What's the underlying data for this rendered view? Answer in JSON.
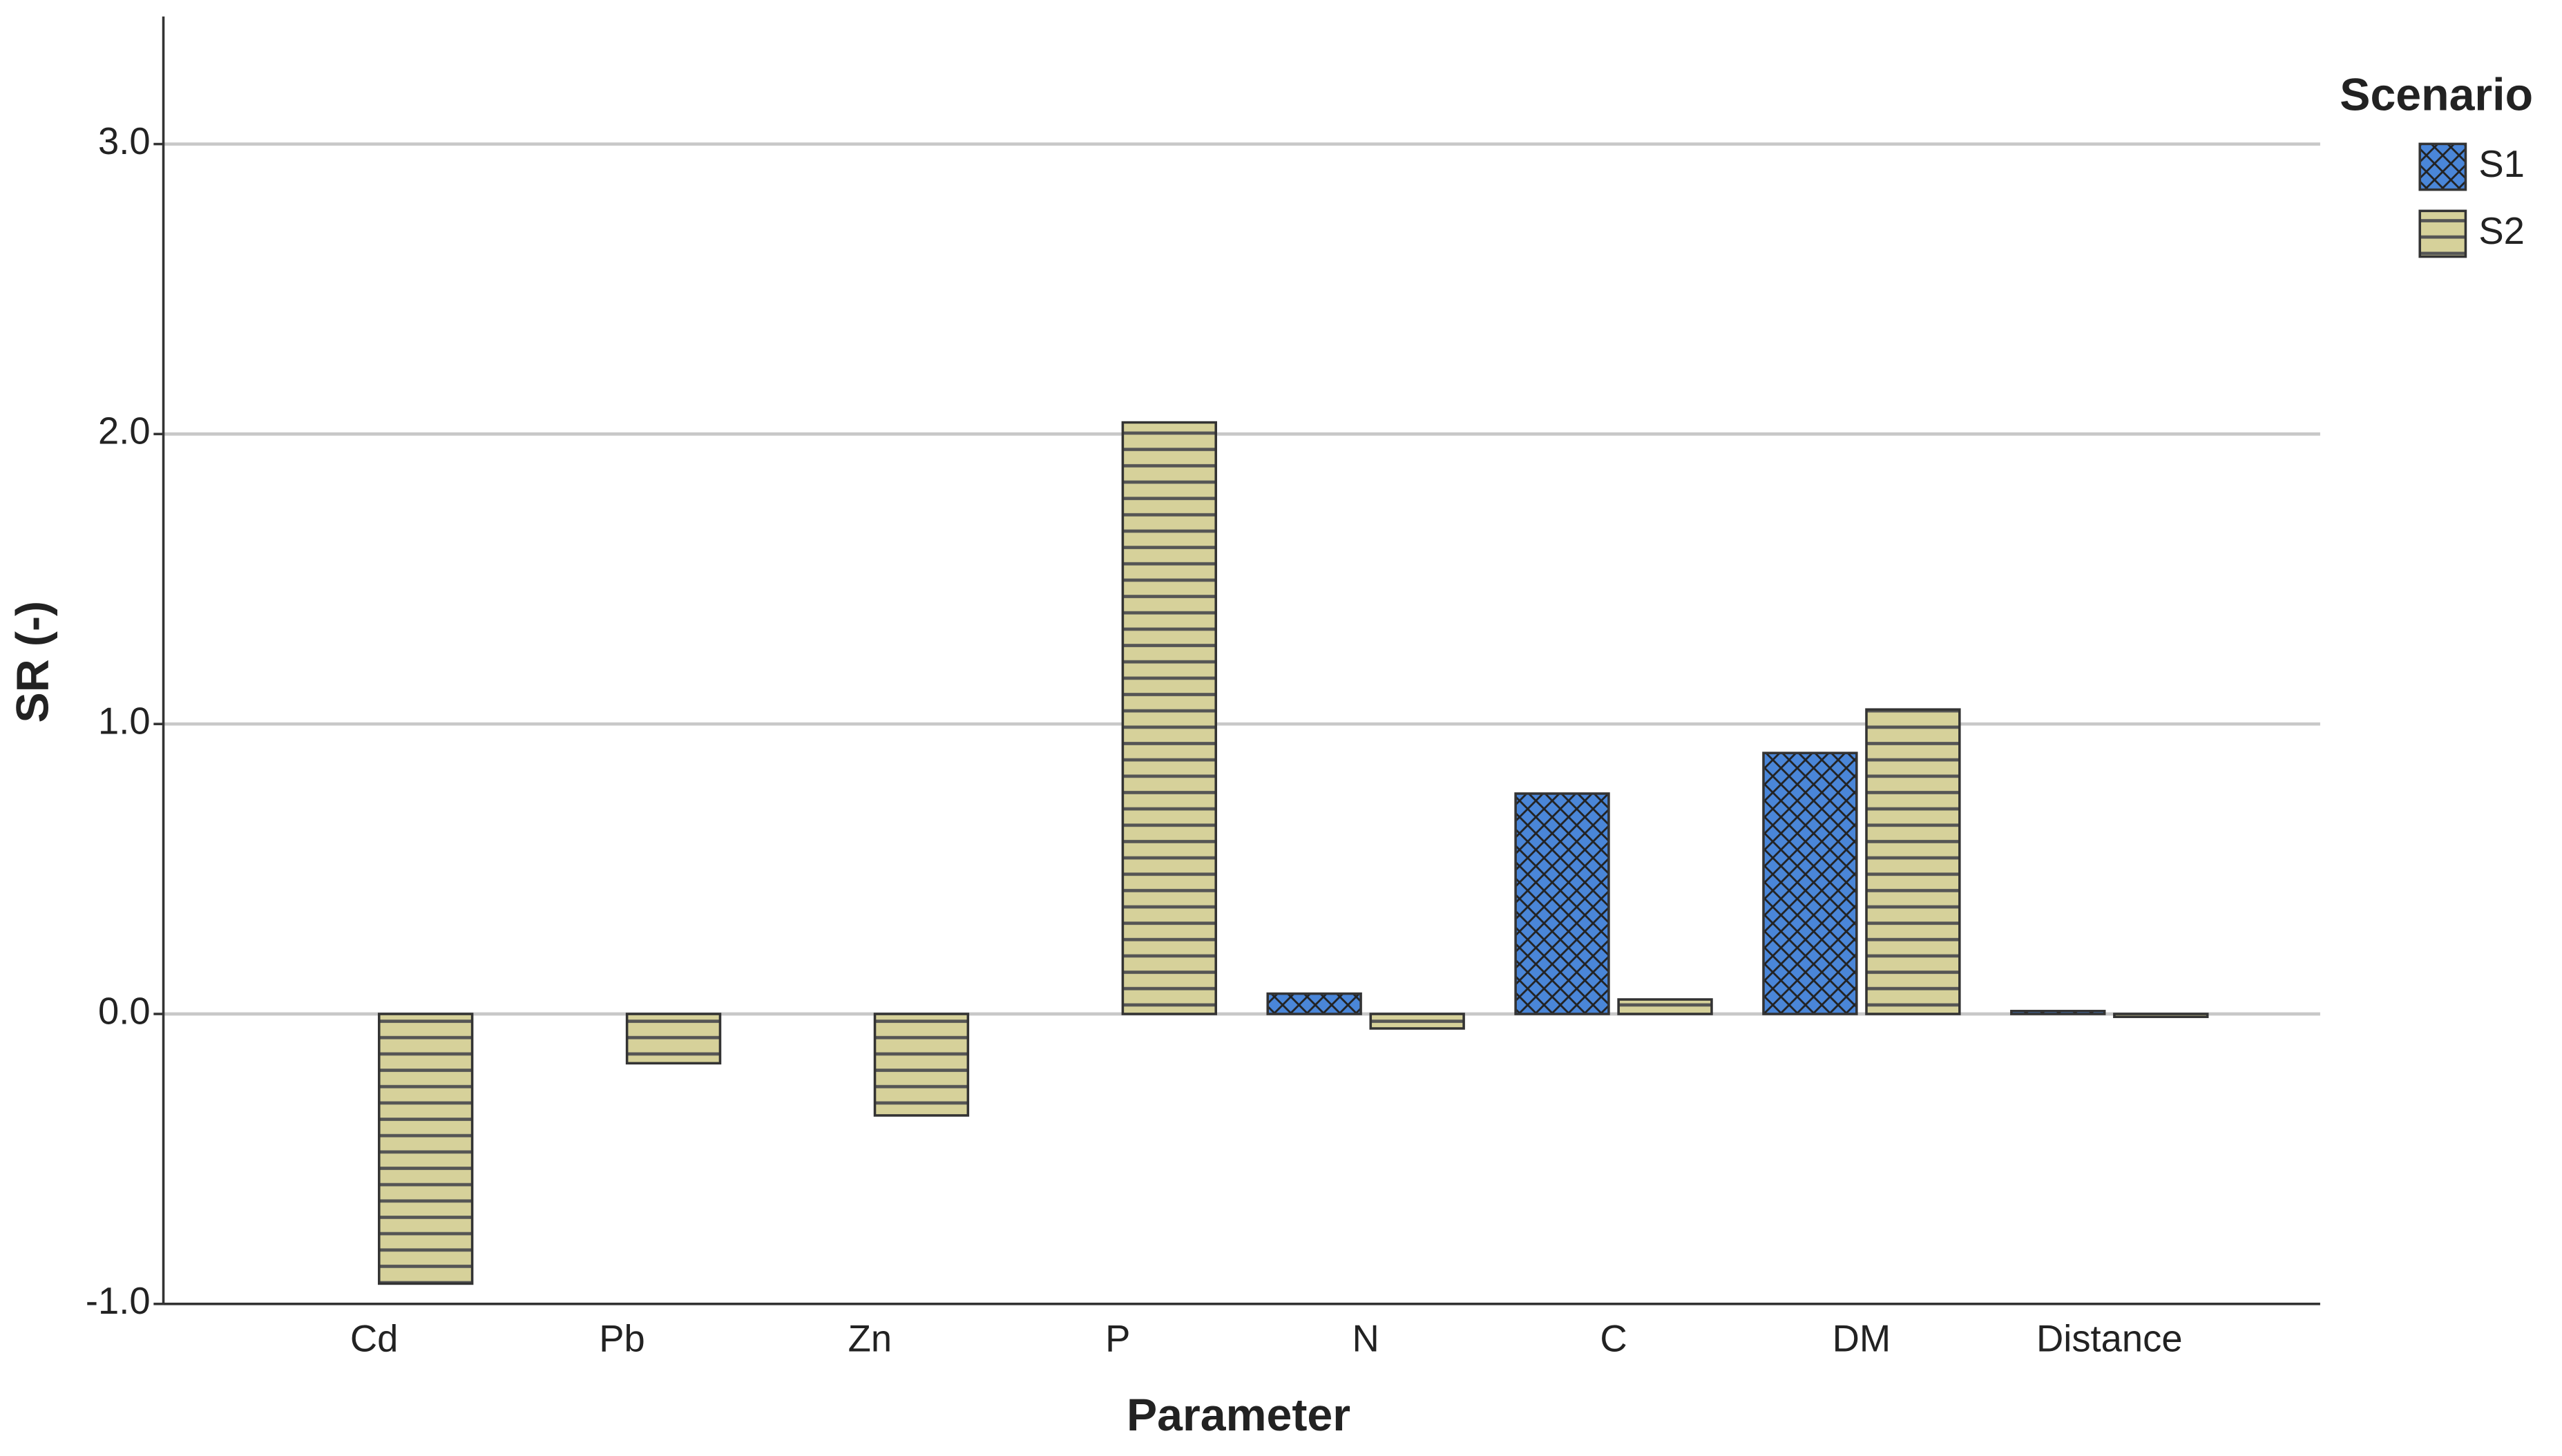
{
  "chart_data": {
    "type": "bar",
    "x_label": "Parameter",
    "y_label": "SR (-)",
    "legend_title": "Scenario",
    "legend_position": "right",
    "grid": true,
    "categories": [
      "Cd",
      "Pb",
      "Zn",
      "P",
      "N",
      "C",
      "DM",
      "Distance"
    ],
    "series": [
      {
        "name": "S1",
        "color": "#4a86d8",
        "pattern": "crosshatch",
        "values": [
          0,
          0,
          0,
          0,
          0.07,
          0.76,
          0.9,
          0.01
        ]
      },
      {
        "name": "S2",
        "color": "#d6d19a",
        "pattern": "horizontal",
        "values": [
          -0.93,
          -0.17,
          -0.35,
          2.04,
          -0.05,
          0.05,
          1.05,
          -0.01
        ]
      }
    ],
    "ylim": [
      -1,
      3.44
    ],
    "yticks": [
      {
        "value": -1,
        "label": "-1.0"
      },
      {
        "value": 0,
        "label": "0.0"
      },
      {
        "value": 1,
        "label": "1.0"
      },
      {
        "value": 2,
        "label": "2.0"
      },
      {
        "value": 3,
        "label": "3.0"
      }
    ]
  }
}
